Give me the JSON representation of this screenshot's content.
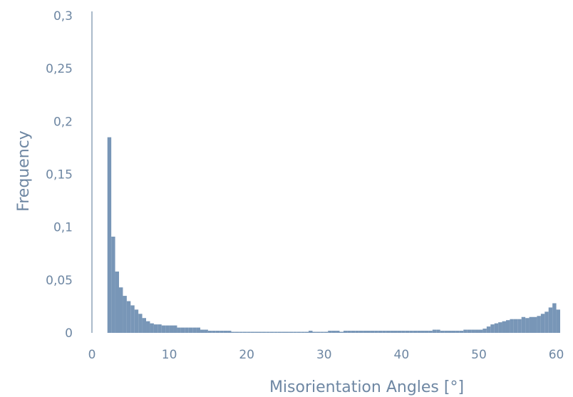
{
  "chart_data": {
    "type": "bar",
    "title": "",
    "xlabel": "Misorientation Angles [°]",
    "ylabel": "Frequency",
    "xlim": [
      0,
      60.5
    ],
    "ylim": [
      0,
      0.3
    ],
    "bin_width": 0.5,
    "xticks": [
      {
        "value": 0,
        "label": "0"
      },
      {
        "value": 10,
        "label": "10"
      },
      {
        "value": 20,
        "label": "20"
      },
      {
        "value": 30,
        "label": "30"
      },
      {
        "value": 40,
        "label": "40"
      },
      {
        "value": 50,
        "label": "50"
      },
      {
        "value": 60,
        "label": "60"
      }
    ],
    "yticks": [
      {
        "value": 0,
        "label": "0"
      },
      {
        "value": 0.05,
        "label": "0,05"
      },
      {
        "value": 0.1,
        "label": "0,1"
      },
      {
        "value": 0.15,
        "label": "0,15"
      },
      {
        "value": 0.2,
        "label": "0,2"
      },
      {
        "value": 0.25,
        "label": "0,25"
      },
      {
        "value": 0.3,
        "label": "0,3"
      }
    ],
    "grid": false,
    "bar_color": "#7896b7",
    "axis_color": "#6e87a3",
    "bins": [
      {
        "x": 2.0,
        "y": 0.185
      },
      {
        "x": 2.5,
        "y": 0.091
      },
      {
        "x": 3.0,
        "y": 0.058
      },
      {
        "x": 3.5,
        "y": 0.043
      },
      {
        "x": 4.0,
        "y": 0.035
      },
      {
        "x": 4.5,
        "y": 0.03
      },
      {
        "x": 5.0,
        "y": 0.026
      },
      {
        "x": 5.5,
        "y": 0.022
      },
      {
        "x": 6.0,
        "y": 0.018
      },
      {
        "x": 6.5,
        "y": 0.014
      },
      {
        "x": 7.0,
        "y": 0.011
      },
      {
        "x": 7.5,
        "y": 0.009
      },
      {
        "x": 8.0,
        "y": 0.008
      },
      {
        "x": 8.5,
        "y": 0.008
      },
      {
        "x": 9.0,
        "y": 0.007
      },
      {
        "x": 9.5,
        "y": 0.007
      },
      {
        "x": 10.0,
        "y": 0.007
      },
      {
        "x": 10.5,
        "y": 0.007
      },
      {
        "x": 11.0,
        "y": 0.005
      },
      {
        "x": 11.5,
        "y": 0.005
      },
      {
        "x": 12.0,
        "y": 0.005
      },
      {
        "x": 12.5,
        "y": 0.005
      },
      {
        "x": 13.0,
        "y": 0.005
      },
      {
        "x": 13.5,
        "y": 0.005
      },
      {
        "x": 14.0,
        "y": 0.003
      },
      {
        "x": 14.5,
        "y": 0.003
      },
      {
        "x": 15.0,
        "y": 0.002
      },
      {
        "x": 15.5,
        "y": 0.002
      },
      {
        "x": 16.0,
        "y": 0.002
      },
      {
        "x": 16.5,
        "y": 0.002
      },
      {
        "x": 17.0,
        "y": 0.002
      },
      {
        "x": 17.5,
        "y": 0.002
      },
      {
        "x": 18.0,
        "y": 0.001
      },
      {
        "x": 18.5,
        "y": 0.001
      },
      {
        "x": 19.0,
        "y": 0.001
      },
      {
        "x": 19.5,
        "y": 0.001
      },
      {
        "x": 20.0,
        "y": 0.001
      },
      {
        "x": 20.5,
        "y": 0.001
      },
      {
        "x": 21.0,
        "y": 0.001
      },
      {
        "x": 21.5,
        "y": 0.001
      },
      {
        "x": 22.0,
        "y": 0.001
      },
      {
        "x": 22.5,
        "y": 0.001
      },
      {
        "x": 23.0,
        "y": 0.001
      },
      {
        "x": 23.5,
        "y": 0.001
      },
      {
        "x": 24.0,
        "y": 0.001
      },
      {
        "x": 24.5,
        "y": 0.001
      },
      {
        "x": 25.0,
        "y": 0.001
      },
      {
        "x": 25.5,
        "y": 0.001
      },
      {
        "x": 26.0,
        "y": 0.001
      },
      {
        "x": 26.5,
        "y": 0.001
      },
      {
        "x": 27.0,
        "y": 0.001
      },
      {
        "x": 27.5,
        "y": 0.001
      },
      {
        "x": 28.0,
        "y": 0.002
      },
      {
        "x": 28.5,
        "y": 0.001
      },
      {
        "x": 29.0,
        "y": 0.001
      },
      {
        "x": 29.5,
        "y": 0.001
      },
      {
        "x": 30.0,
        "y": 0.001
      },
      {
        "x": 30.5,
        "y": 0.002
      },
      {
        "x": 31.0,
        "y": 0.002
      },
      {
        "x": 31.5,
        "y": 0.002
      },
      {
        "x": 32.0,
        "y": 0.001
      },
      {
        "x": 32.5,
        "y": 0.002
      },
      {
        "x": 33.0,
        "y": 0.002
      },
      {
        "x": 33.5,
        "y": 0.002
      },
      {
        "x": 34.0,
        "y": 0.002
      },
      {
        "x": 34.5,
        "y": 0.002
      },
      {
        "x": 35.0,
        "y": 0.002
      },
      {
        "x": 35.5,
        "y": 0.002
      },
      {
        "x": 36.0,
        "y": 0.002
      },
      {
        "x": 36.5,
        "y": 0.002
      },
      {
        "x": 37.0,
        "y": 0.002
      },
      {
        "x": 37.5,
        "y": 0.002
      },
      {
        "x": 38.0,
        "y": 0.002
      },
      {
        "x": 38.5,
        "y": 0.002
      },
      {
        "x": 39.0,
        "y": 0.002
      },
      {
        "x": 39.5,
        "y": 0.002
      },
      {
        "x": 40.0,
        "y": 0.002
      },
      {
        "x": 40.5,
        "y": 0.002
      },
      {
        "x": 41.0,
        "y": 0.002
      },
      {
        "x": 41.5,
        "y": 0.002
      },
      {
        "x": 42.0,
        "y": 0.002
      },
      {
        "x": 42.5,
        "y": 0.002
      },
      {
        "x": 43.0,
        "y": 0.002
      },
      {
        "x": 43.5,
        "y": 0.002
      },
      {
        "x": 44.0,
        "y": 0.003
      },
      {
        "x": 44.5,
        "y": 0.003
      },
      {
        "x": 45.0,
        "y": 0.002
      },
      {
        "x": 45.5,
        "y": 0.002
      },
      {
        "x": 46.0,
        "y": 0.002
      },
      {
        "x": 46.5,
        "y": 0.002
      },
      {
        "x": 47.0,
        "y": 0.002
      },
      {
        "x": 47.5,
        "y": 0.002
      },
      {
        "x": 48.0,
        "y": 0.003
      },
      {
        "x": 48.5,
        "y": 0.003
      },
      {
        "x": 49.0,
        "y": 0.003
      },
      {
        "x": 49.5,
        "y": 0.003
      },
      {
        "x": 50.0,
        "y": 0.003
      },
      {
        "x": 50.5,
        "y": 0.004
      },
      {
        "x": 51.0,
        "y": 0.006
      },
      {
        "x": 51.5,
        "y": 0.008
      },
      {
        "x": 52.0,
        "y": 0.009
      },
      {
        "x": 52.5,
        "y": 0.01
      },
      {
        "x": 53.0,
        "y": 0.011
      },
      {
        "x": 53.5,
        "y": 0.012
      },
      {
        "x": 54.0,
        "y": 0.013
      },
      {
        "x": 54.5,
        "y": 0.013
      },
      {
        "x": 55.0,
        "y": 0.013
      },
      {
        "x": 55.5,
        "y": 0.015
      },
      {
        "x": 56.0,
        "y": 0.014
      },
      {
        "x": 56.5,
        "y": 0.015
      },
      {
        "x": 57.0,
        "y": 0.015
      },
      {
        "x": 57.5,
        "y": 0.016
      },
      {
        "x": 58.0,
        "y": 0.018
      },
      {
        "x": 58.5,
        "y": 0.02
      },
      {
        "x": 59.0,
        "y": 0.024
      },
      {
        "x": 59.5,
        "y": 0.028
      },
      {
        "x": 60.0,
        "y": 0.022
      }
    ]
  }
}
